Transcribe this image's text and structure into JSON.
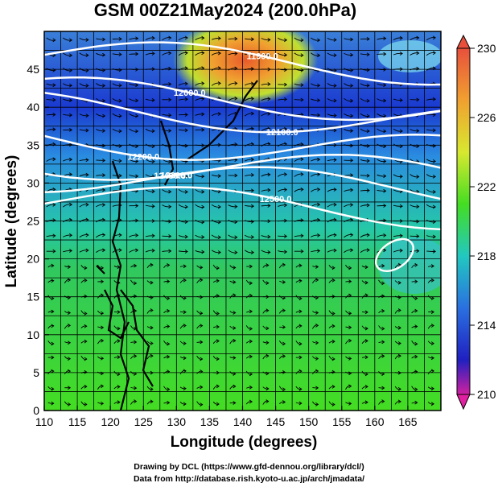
{
  "title": "GSM 00Z21May2024 (200.0hPa)",
  "axes": {
    "xlabel": "Longitude (degrees)",
    "ylabel": "Latitude  (degrees)",
    "xlim": [
      110,
      170
    ],
    "ylim": [
      0,
      50
    ],
    "xticks": [
      "110",
      "115",
      "120",
      "125",
      "130",
      "135",
      "140",
      "145",
      "150",
      "155",
      "160",
      "165"
    ],
    "yticks": [
      "0",
      "5",
      "10",
      "15",
      "20",
      "25",
      "30",
      "35",
      "40",
      "45"
    ]
  },
  "colorbar": {
    "min": 210,
    "max": 230,
    "labels": [
      "230",
      "226",
      "222",
      "218",
      "214",
      "210"
    ]
  },
  "contours": [
    {
      "label": "11900.0",
      "lat": 46
    },
    {
      "label": "12000.0",
      "lat": 41
    },
    {
      "label": "12100.0",
      "lat": 39
    },
    {
      "label": "12200.0",
      "lat": 35
    },
    {
      "label": "12300.0",
      "lat": 32
    },
    {
      "label": "12400.0",
      "lat": 30
    },
    {
      "label": "12500.0",
      "lat": 27
    }
  ],
  "credits": {
    "line1": "Drawing by DCL (https://www.gfd-dennou.org/library/dcl/)",
    "line2": "Data from http://database.rish.kyoto-u.ac.jp/arch/jmadata/"
  }
}
